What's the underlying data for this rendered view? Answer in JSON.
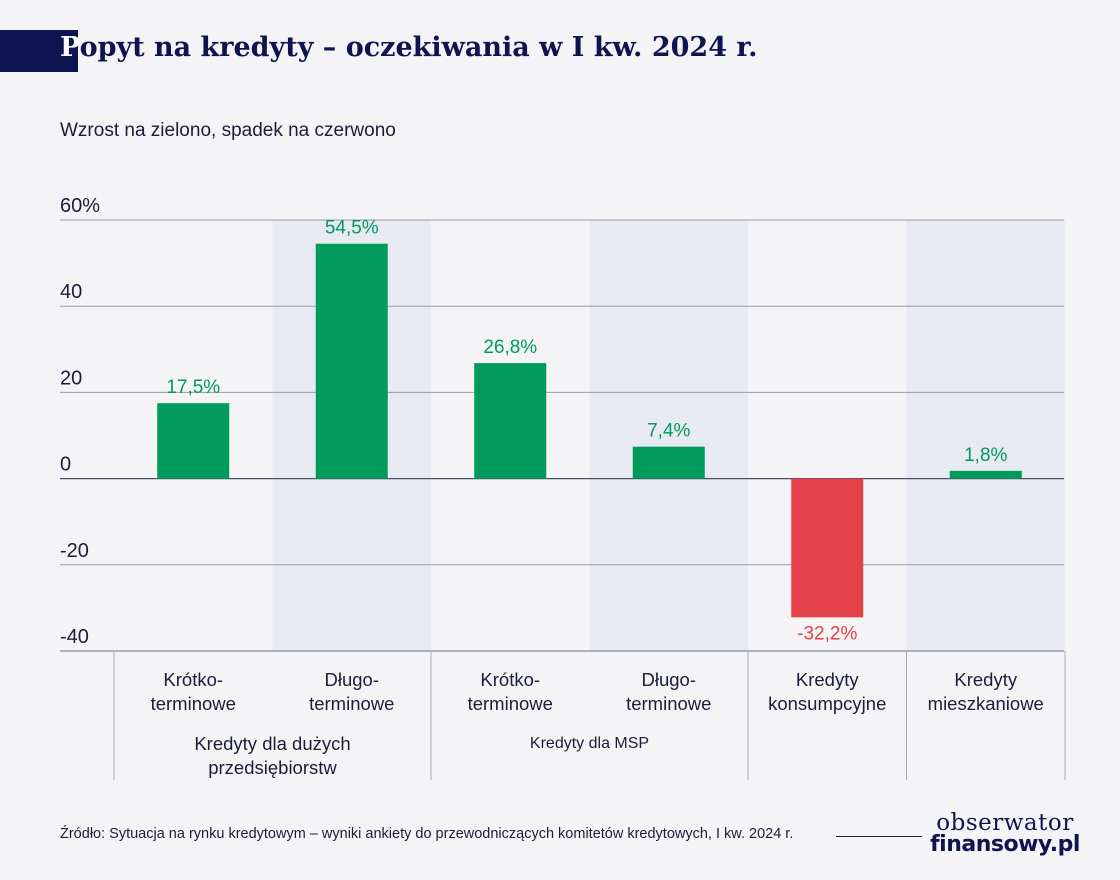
{
  "header": {
    "title_first": "P",
    "title_rest": "opyt na kredyty – oczekiwania w I kw. 2024 r.",
    "subtitle": "Wzrost na zielono, spadek na czerwono"
  },
  "chart_data": {
    "type": "bar",
    "ylim": [
      -40,
      60
    ],
    "yticks": [
      60,
      40,
      20,
      0,
      -20,
      -40
    ],
    "ytick_labels": [
      "60%",
      "40",
      "20",
      "0",
      "-20",
      "-40"
    ],
    "grid": true,
    "categories": [
      {
        "line1": "Krótko-",
        "line2": "terminowe"
      },
      {
        "line1": "Długo-",
        "line2": "terminowe"
      },
      {
        "line1": "Krótko-",
        "line2": "terminowe"
      },
      {
        "line1": "Długo-",
        "line2": "terminowe"
      },
      {
        "line1": "Kredyty",
        "line2": "konsumpcyjne"
      },
      {
        "line1": "Kredyty",
        "line2": "mieszkaniowe"
      }
    ],
    "values": [
      17.5,
      54.5,
      26.8,
      7.4,
      -32.2,
      1.8
    ],
    "value_labels": [
      "17,5%",
      "54,5%",
      "26,8%",
      "7,4%",
      "-32,2%",
      "1,8%"
    ],
    "groups": [
      {
        "line1": "Kredyty dla dużych",
        "line2": "przedsiębiorstw"
      },
      {
        "line1": "Kredyty dla MSP",
        "line2": ""
      }
    ],
    "colors": {
      "positive": "#009a5d",
      "negative": "#e4414b",
      "shade": "#e8eaf1",
      "grid": "#9a9aa8",
      "text": "#1b1d3b"
    }
  },
  "footer": {
    "source": "Źródło: Sytuacja na rynku kredytowym – wyniki ankiety do przewodniczących komitetów kredytowych, I kw. 2024 r.",
    "logo_line1": "obserwator",
    "logo_line2": "finansowy.pl"
  }
}
